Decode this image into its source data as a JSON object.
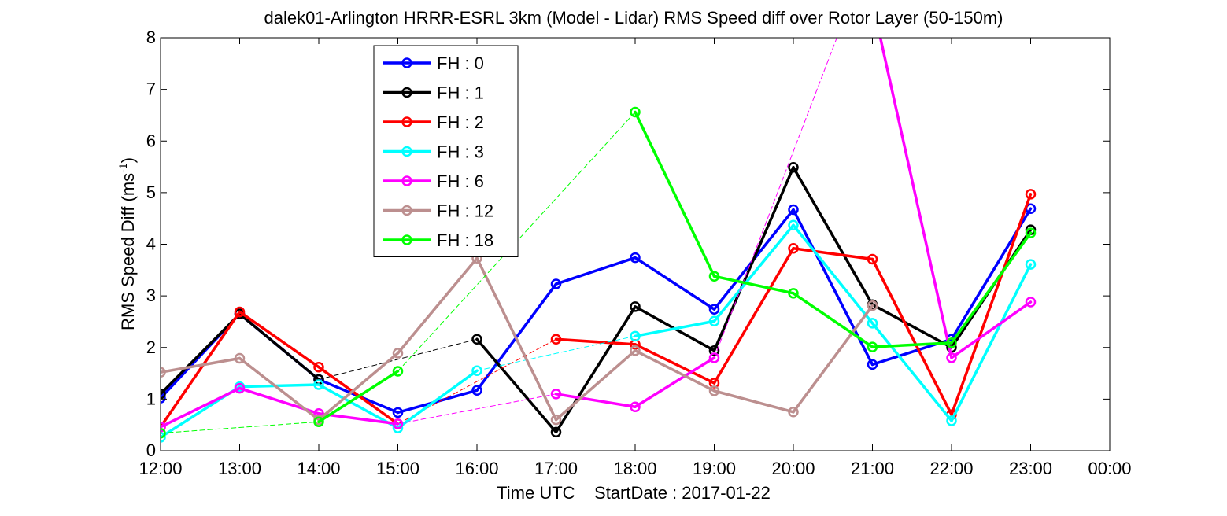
{
  "chart_data": {
    "type": "line",
    "title": "dalek01-Arlington HRRR-ESRL 3km (Model - Lidar) RMS Speed diff over Rotor Layer (50-150m)",
    "xlabel": "Time UTC    StartDate : 2017-01-22",
    "ylabel_main": "RMS Speed Diff (ms",
    "ylabel_sup": "-1",
    "ylabel_close": ")",
    "ylim": [
      0,
      8
    ],
    "yticks": [
      "0",
      "1",
      "2",
      "3",
      "4",
      "5",
      "6",
      "7",
      "8"
    ],
    "xlim": [
      12,
      24
    ],
    "xticks": [
      "12:00",
      "13:00",
      "14:00",
      "15:00",
      "16:00",
      "17:00",
      "18:00",
      "19:00",
      "20:00",
      "21:00",
      "22:00",
      "23:00",
      "00:00"
    ],
    "grid": false,
    "legend_position": "upper-left",
    "series": [
      {
        "name": "FH : 0",
        "color": "#0000ff",
        "x": [
          12,
          13,
          14,
          15,
          16,
          17,
          18,
          19,
          20,
          21,
          22,
          23
        ],
        "y": [
          1.02,
          2.65,
          1.38,
          0.74,
          1.17,
          3.23,
          3.74,
          2.74,
          4.67,
          1.67,
          2.16,
          4.69
        ]
      },
      {
        "name": "FH : 1",
        "color": "#000000",
        "x": [
          12,
          13,
          14,
          16,
          17,
          18,
          19,
          20,
          21,
          22,
          23
        ],
        "y": [
          1.1,
          2.65,
          1.38,
          2.16,
          0.36,
          2.79,
          1.94,
          5.49,
          2.83,
          2.0,
          4.28
        ]
      },
      {
        "name": "FH : 2",
        "color": "#ff0000",
        "x": [
          12,
          13,
          14,
          15,
          17,
          18,
          19,
          20,
          21,
          22,
          23
        ],
        "y": [
          0.46,
          2.69,
          1.62,
          0.52,
          2.16,
          2.06,
          1.31,
          3.92,
          3.71,
          0.7,
          4.97
        ]
      },
      {
        "name": "FH : 3",
        "color": "#00ffff",
        "x": [
          12,
          13,
          14,
          15,
          16,
          18,
          19,
          20,
          21,
          22,
          23
        ],
        "y": [
          0.26,
          1.24,
          1.28,
          0.44,
          1.55,
          2.22,
          2.51,
          4.37,
          2.47,
          0.58,
          3.61
        ]
      },
      {
        "name": "FH : 6",
        "color": "#ff00ff",
        "x": [
          12,
          13,
          14,
          15,
          17,
          18,
          19,
          20.8,
          21.1,
          22,
          23
        ],
        "y": [
          0.46,
          1.21,
          0.72,
          0.52,
          1.1,
          0.85,
          1.8,
          9.0,
          8.0,
          1.8,
          2.88
        ]
      },
      {
        "name": "FH : 12",
        "color": "#bc8f8f",
        "x": [
          12,
          13,
          14,
          15,
          16,
          17,
          18,
          19,
          20,
          21
        ],
        "y": [
          1.52,
          1.79,
          0.6,
          1.89,
          3.73,
          0.6,
          1.94,
          1.16,
          0.75,
          2.81
        ]
      },
      {
        "name": "FH : 18",
        "color": "#00ff00",
        "x": [
          12,
          14,
          15,
          18,
          19,
          20,
          21,
          22,
          23
        ],
        "y": [
          0.34,
          0.56,
          1.54,
          6.56,
          3.38,
          3.05,
          2.01,
          2.09,
          4.22
        ]
      }
    ]
  }
}
